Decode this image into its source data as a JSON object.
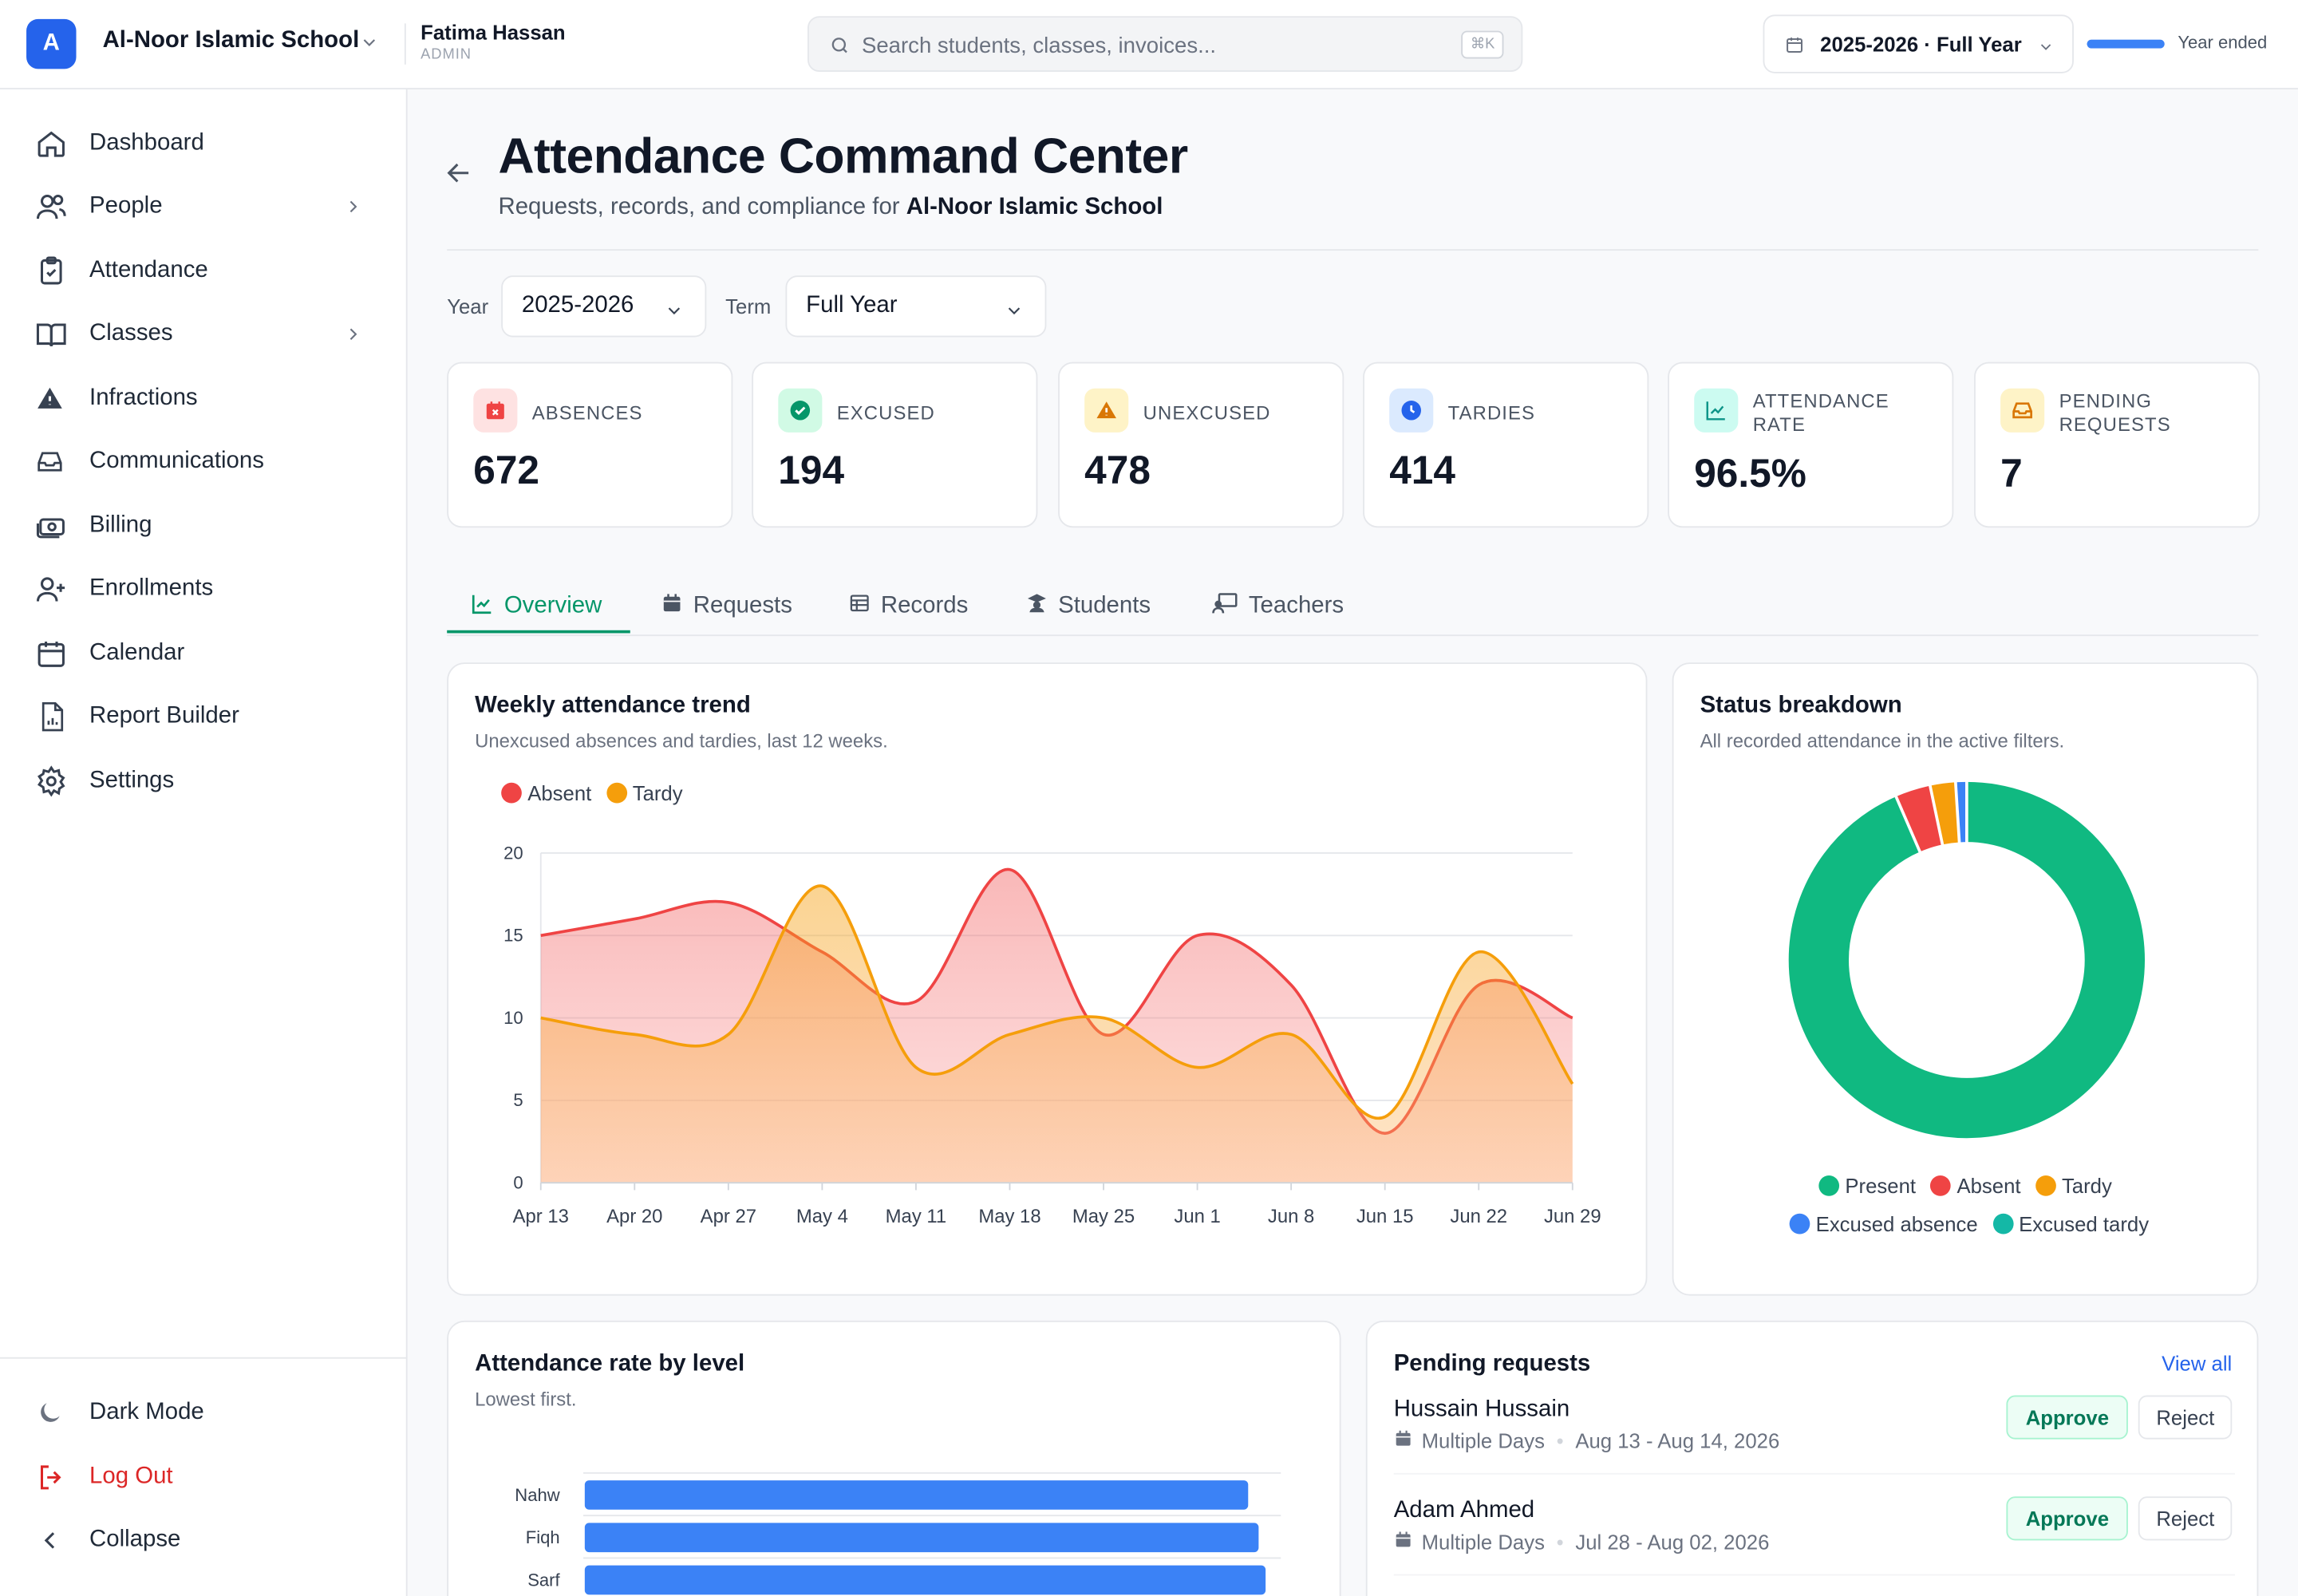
{
  "header": {
    "logo_letter": "A",
    "school_name": "Al-Noor Islamic School",
    "user_name": "Fatima Hassan",
    "user_role": "ADMIN",
    "search_placeholder": "Search students, classes, invoices...",
    "search_shortcut": "⌘K",
    "year_picker": "2025-2026 · Full Year",
    "year_progress_percent": 100,
    "year_status": "Year ended"
  },
  "sidebar": {
    "items": [
      {
        "label": "Dashboard",
        "icon": "home-icon"
      },
      {
        "label": "People",
        "icon": "users-icon",
        "has_children": true
      },
      {
        "label": "Attendance",
        "icon": "clipboard-check-icon"
      },
      {
        "label": "Classes",
        "icon": "book-open-icon",
        "has_children": true
      },
      {
        "label": "Infractions",
        "icon": "alert-triangle-icon"
      },
      {
        "label": "Communications",
        "icon": "inbox-icon"
      },
      {
        "label": "Billing",
        "icon": "banknote-icon"
      },
      {
        "label": "Enrollments",
        "icon": "user-plus-icon"
      },
      {
        "label": "Calendar",
        "icon": "calendar-icon"
      },
      {
        "label": "Report Builder",
        "icon": "file-chart-icon"
      },
      {
        "label": "Settings",
        "icon": "gear-icon"
      }
    ],
    "dark_mode": "Dark Mode",
    "log_out": "Log Out",
    "collapse": "Collapse"
  },
  "page": {
    "title": "Attendance Command Center",
    "subtitle_prefix": "Requests, records, and compliance for ",
    "subtitle_school": "Al-Noor Islamic School"
  },
  "filters": {
    "year_label": "Year",
    "year_value": "2025-2026",
    "term_label": "Term",
    "term_value": "Full Year"
  },
  "kpis": [
    {
      "label": "ABSENCES",
      "value": "672",
      "color": "#ef4444",
      "bg": "#fee2e2",
      "icon": "calendar-x-icon"
    },
    {
      "label": "EXCUSED",
      "value": "194",
      "color": "#10b981",
      "bg": "#d1fae5",
      "icon": "check-circle-icon"
    },
    {
      "label": "UNEXCUSED",
      "value": "478",
      "color": "#f59e0b",
      "bg": "#fef3c7",
      "icon": "warning-icon"
    },
    {
      "label": "TARDIES",
      "value": "414",
      "color": "#3b82f6",
      "bg": "#dbeafe",
      "icon": "clock-icon"
    },
    {
      "label": "ATTENDANCE RATE",
      "value": "96.5%",
      "color": "#14b8a6",
      "bg": "#ccfbf1",
      "icon": "trend-chart-icon"
    },
    {
      "label": "PENDING REQUESTS",
      "value": "7",
      "color": "#f59e0b",
      "bg": "#fef3c7",
      "icon": "inbox-icon"
    }
  ],
  "tabs": [
    {
      "label": "Overview",
      "icon": "line-chart-icon",
      "active": true
    },
    {
      "label": "Requests",
      "icon": "calendar-icon"
    },
    {
      "label": "Records",
      "icon": "table-icon"
    },
    {
      "label": "Students",
      "icon": "graduation-icon"
    },
    {
      "label": "Teachers",
      "icon": "presentation-icon"
    }
  ],
  "trend_card": {
    "title": "Weekly attendance trend",
    "subtitle": "Unexcused absences and tardies, last 12 weeks."
  },
  "status_card": {
    "title": "Status breakdown",
    "subtitle": "All recorded attendance in the active filters."
  },
  "level_card": {
    "title": "Attendance rate by level",
    "subtitle": "Lowest first."
  },
  "pending": {
    "title": "Pending requests",
    "view_all": "View all",
    "approve": "Approve",
    "reject": "Reject",
    "items": [
      {
        "name": "Hussain Hussain",
        "type": "Multiple Days",
        "dates": "Aug 13 - Aug 14, 2026"
      },
      {
        "name": "Adam Ahmed",
        "type": "Multiple Days",
        "dates": "Jul 28 - Aug 02, 2026"
      }
    ]
  },
  "chart_data": [
    {
      "type": "area",
      "x": [
        "Apr 13",
        "Apr 20",
        "Apr 27",
        "May 4",
        "May 11",
        "May 18",
        "May 25",
        "Jun 1",
        "Jun 8",
        "Jun 15",
        "Jun 22",
        "Jun 29"
      ],
      "ylim": [
        0,
        20
      ],
      "yticks": [
        0,
        5,
        10,
        15,
        20
      ],
      "grid": true,
      "legend": "top-left",
      "series": [
        {
          "name": "Absent",
          "color": "#ef4444",
          "values": [
            15,
            16,
            17,
            14,
            11,
            19,
            9,
            15,
            12,
            3,
            12,
            10
          ]
        },
        {
          "name": "Tardy",
          "color": "#f59e0b",
          "values": [
            10,
            9,
            9,
            18,
            7,
            9,
            10,
            7,
            9,
            4,
            14,
            6
          ]
        }
      ]
    },
    {
      "type": "pie",
      "legend": "bottom",
      "categories": [
        "Present",
        "Absent",
        "Tardy",
        "Excused absence",
        "Excused tardy"
      ],
      "colors": [
        "#10b981",
        "#ef4444",
        "#f59e0b",
        "#3b82f6",
        "#14b8a6"
      ],
      "values": [
        93.5,
        3.2,
        2.3,
        1.0,
        0
      ]
    },
    {
      "type": "bar",
      "orientation": "horizontal",
      "categories": [
        "Nahw",
        "Fiqh",
        "Sarf"
      ],
      "values": [
        95.1,
        96.6,
        97.6
      ],
      "xlim": [
        0,
        100
      ],
      "color": "#3b82f6"
    }
  ]
}
